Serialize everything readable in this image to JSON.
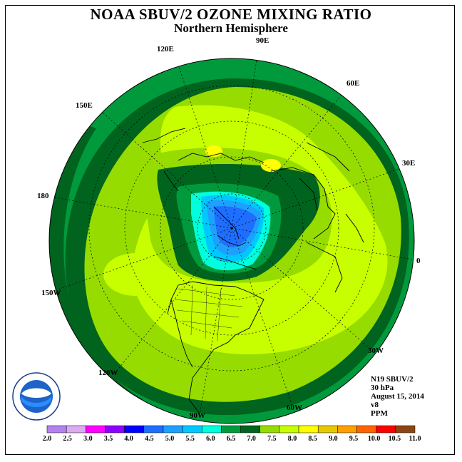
{
  "header": {
    "title": "NOAA SBUV/2 OZONE MIXING RATIO",
    "subtitle": "Northern Hemisphere"
  },
  "longitude_labels": [
    "90E",
    "60E",
    "30E",
    "0",
    "30W",
    "60W",
    "90W",
    "120W",
    "150W",
    "180",
    "150E",
    "120E"
  ],
  "info": {
    "satellite": "N19 SBUV/2",
    "level": "30 hPa",
    "date": "August 15, 2014",
    "version": "v8",
    "units": "PPM"
  },
  "legend": {
    "values": [
      "2.0",
      "2.5",
      "3.0",
      "3.5",
      "4.0",
      "4.5",
      "5.0",
      "5.5",
      "6.0",
      "6.5",
      "7.0",
      "7.5",
      "8.0",
      "8.5",
      "9.0",
      "9.5",
      "10.0",
      "10.5",
      "11.0"
    ],
    "colors": [
      "#b482f0",
      "#dcaaf0",
      "#ff00ff",
      "#8c00ff",
      "#0000ff",
      "#1e6eff",
      "#1ea0ff",
      "#00c8ff",
      "#00ffdc",
      "#009a3c",
      "#00641e",
      "#96dc00",
      "#c8ff00",
      "#ffff00",
      "#e6c800",
      "#ffa000",
      "#ff6400",
      "#ff0000",
      "#8b4513"
    ]
  },
  "logo": {
    "name": "noaa-logo",
    "text": "NOAA",
    "ring_text": "NATIONAL OCEANIC AND ATMOSPHERIC ADMINISTRATION · U.S. DEPARTMENT OF COMMERCE"
  }
}
